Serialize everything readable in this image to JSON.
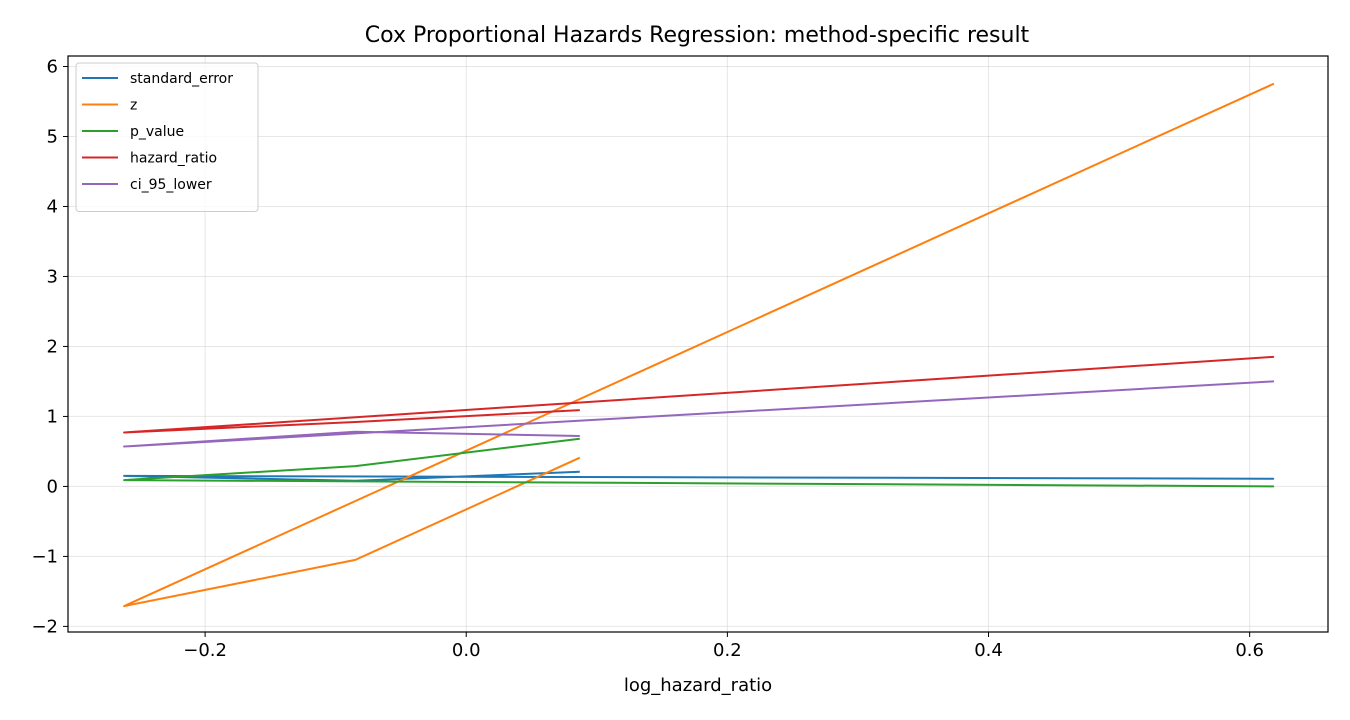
{
  "chart_data": {
    "type": "line",
    "title": "Cox Proportional Hazards Regression: method-specific result",
    "xlabel": "log_hazard_ratio",
    "ylabel": "",
    "xlim": [
      -0.305,
      0.66
    ],
    "ylim": [
      -2.08,
      6.15
    ],
    "xticks": [
      -0.2,
      0.0,
      0.2,
      0.4,
      0.6
    ],
    "xtick_labels": [
      "−0.2",
      "0.0",
      "0.2",
      "0.4",
      "0.6"
    ],
    "yticks": [
      -2,
      -1,
      0,
      1,
      2,
      3,
      4,
      5,
      6
    ],
    "ytick_labels": [
      "−2",
      "−1",
      "0",
      "1",
      "2",
      "3",
      "4",
      "5",
      "6"
    ],
    "grid": true,
    "legend_position": "top-left",
    "series": [
      {
        "name": "standard_error",
        "color": "#1f77b4",
        "x": [
          -0.262,
          0.618,
          -0.262,
          -0.085,
          0.087
        ],
        "values": [
          0.15,
          0.11,
          0.15,
          0.08,
          0.21
        ]
      },
      {
        "name": "z",
        "color": "#ff7f0e",
        "x": [
          -0.262,
          0.618,
          -0.262,
          -0.085,
          0.087
        ],
        "values": [
          -1.71,
          5.75,
          -1.71,
          -1.05,
          0.41
        ]
      },
      {
        "name": "p_value",
        "color": "#2ca02c",
        "x": [
          -0.262,
          0.618,
          -0.262,
          -0.085,
          0.087
        ],
        "values": [
          0.09,
          0.0,
          0.09,
          0.29,
          0.68
        ]
      },
      {
        "name": "hazard_ratio",
        "color": "#d62728",
        "x": [
          -0.262,
          0.618,
          -0.262,
          -0.085,
          0.087
        ],
        "values": [
          0.77,
          1.85,
          0.77,
          0.92,
          1.09
        ]
      },
      {
        "name": "ci_95_lower",
        "color": "#9467bd",
        "x": [
          -0.262,
          0.618,
          -0.262,
          -0.085,
          0.087
        ],
        "values": [
          0.57,
          1.5,
          0.57,
          0.78,
          0.72
        ]
      }
    ]
  }
}
